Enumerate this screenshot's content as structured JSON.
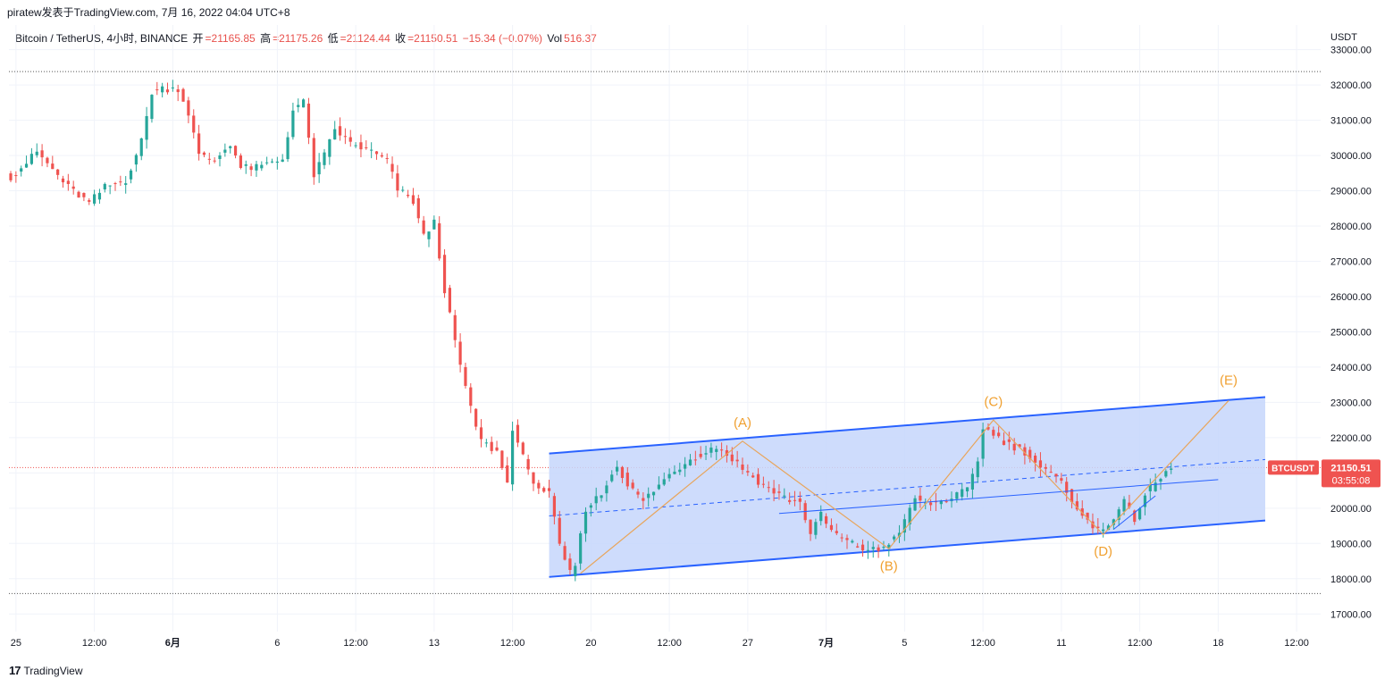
{
  "header": {
    "publish_line": "piratew发表于TradingView.com, 7月 16, 2022 04:04 UTC+8"
  },
  "legend": {
    "symbol": "Bitcoin / TetherUS, 4小时, BINANCE",
    "open_label": "开",
    "open": "=21165.85",
    "high_label": "高",
    "high": "=21175.26",
    "low_label": "低",
    "low": "=21124.44",
    "close_label": "收",
    "close": "=21150.51",
    "change": "−15.34 (−0.07%)",
    "vol_label": "Vol",
    "vol": "516.37"
  },
  "footer": {
    "brand": "TradingView",
    "logo_glyph": "17"
  },
  "colors": {
    "up": "#26a69a",
    "down": "#ef5350",
    "channel_line": "#2962ff",
    "channel_fill": "#c6d6fb",
    "wave": "#e8a55c",
    "wave_label": "#f0a030",
    "price_tag": "#ef5350"
  },
  "chart_data": {
    "type": "candlestick",
    "currency_label": "USDT",
    "ylim": [
      16500,
      33700
    ],
    "y_ticks": [
      "33000.00",
      "32000.00",
      "31000.00",
      "30000.00",
      "29000.00",
      "28000.00",
      "27000.00",
      "26000.00",
      "25000.00",
      "24000.00",
      "23000.00",
      "22000.00",
      "21000.00",
      "20000.00",
      "19000.00",
      "18000.00",
      "17000.00"
    ],
    "y_tick_values": [
      33000,
      32000,
      31000,
      30000,
      29000,
      28000,
      27000,
      26000,
      25000,
      24000,
      23000,
      22000,
      21000,
      20000,
      19000,
      18000,
      17000
    ],
    "x_ticks": [
      "25",
      "12:00",
      "6月",
      "6",
      "12:00",
      "13",
      "12:00",
      "20",
      "12:00",
      "27",
      "7月",
      "5",
      "12:00",
      "11",
      "12:00",
      "18",
      "12:00"
    ],
    "x_tick_bold": [
      false,
      false,
      true,
      false,
      false,
      false,
      false,
      false,
      false,
      false,
      true,
      false,
      false,
      false,
      false,
      false,
      false
    ],
    "bar_range": [
      0,
      240
    ],
    "x_tick_bars": [
      1,
      16,
      31,
      51,
      66,
      81,
      96,
      111,
      126,
      141,
      156,
      171,
      186,
      201,
      216,
      231,
      246
    ],
    "price_line": 21150.51,
    "price_tag": {
      "symbol": "BTCUSDT",
      "price": "21150.51",
      "countdown": "03:55:08"
    },
    "horizontal_levels": [
      32380,
      17580
    ],
    "anchors": [
      [
        0,
        29400
      ],
      [
        3,
        29800
      ],
      [
        5,
        30100
      ],
      [
        8,
        29600
      ],
      [
        11,
        29100
      ],
      [
        15,
        28650
      ],
      [
        18,
        29100
      ],
      [
        22,
        29300
      ],
      [
        25,
        30400
      ],
      [
        27,
        31800
      ],
      [
        29,
        31900
      ],
      [
        32,
        31900
      ],
      [
        34,
        31200
      ],
      [
        36,
        30000
      ],
      [
        39,
        29850
      ],
      [
        42,
        30350
      ],
      [
        44,
        29650
      ],
      [
        47,
        29650
      ],
      [
        52,
        29900
      ],
      [
        54,
        31300
      ],
      [
        56,
        31500
      ],
      [
        58,
        29450
      ],
      [
        60,
        30000
      ],
      [
        62,
        30750
      ],
      [
        65,
        30350
      ],
      [
        69,
        30100
      ],
      [
        72,
        29850
      ],
      [
        74,
        29050
      ],
      [
        77,
        28700
      ],
      [
        79,
        27700
      ],
      [
        81,
        28100
      ],
      [
        83,
        26200
      ],
      [
        85,
        24700
      ],
      [
        88,
        22800
      ],
      [
        90,
        21900
      ],
      [
        93,
        21600
      ],
      [
        95,
        20700
      ],
      [
        96,
        22300
      ],
      [
        99,
        21000
      ],
      [
        101,
        20600
      ],
      [
        103,
        20400
      ],
      [
        105,
        18900
      ],
      [
        107,
        18150
      ],
      [
        108,
        18400
      ],
      [
        110,
        20000
      ],
      [
        113,
        20400
      ],
      [
        116,
        21250
      ],
      [
        118,
        20650
      ],
      [
        121,
        20200
      ],
      [
        123,
        20500
      ],
      [
        126,
        20950
      ],
      [
        130,
        21400
      ],
      [
        135,
        21750
      ],
      [
        138,
        21400
      ],
      [
        141,
        21000
      ],
      [
        144,
        20650
      ],
      [
        148,
        20300
      ],
      [
        151,
        20150
      ],
      [
        153,
        19300
      ],
      [
        155,
        19800
      ],
      [
        157,
        19350
      ],
      [
        160,
        19050
      ],
      [
        163,
        18850
      ],
      [
        166,
        18800
      ],
      [
        169,
        19150
      ],
      [
        171,
        19600
      ],
      [
        173,
        20300
      ],
      [
        175,
        20100
      ],
      [
        177,
        20150
      ],
      [
        180,
        20300
      ],
      [
        183,
        20500
      ],
      [
        185,
        21350
      ],
      [
        186,
        22300
      ],
      [
        188,
        22100
      ],
      [
        191,
        21800
      ],
      [
        194,
        21600
      ],
      [
        197,
        21150
      ],
      [
        200,
        20850
      ],
      [
        202,
        20500
      ],
      [
        205,
        19800
      ],
      [
        207,
        19400
      ],
      [
        209,
        19450
      ],
      [
        211,
        19750
      ],
      [
        213,
        20150
      ],
      [
        215,
        19700
      ],
      [
        217,
        20400
      ],
      [
        219,
        20700
      ],
      [
        222,
        21150
      ]
    ],
    "channel": {
      "upper": [
        [
          103,
          21550
        ],
        [
          240,
          23150
        ]
      ],
      "lower": [
        [
          103,
          18050
        ],
        [
          240,
          19650
        ]
      ]
    },
    "mid_dashed": [
      [
        103,
        19780
      ],
      [
        240,
        21380
      ]
    ],
    "inner_line": [
      [
        147,
        19850
      ],
      [
        231,
        20810
      ]
    ],
    "small_line": [
      [
        211,
        19400
      ],
      [
        219,
        20350
      ]
    ],
    "wave_path": [
      [
        109,
        18150
      ],
      [
        140,
        21900
      ],
      [
        168,
        18850
      ],
      [
        188,
        22500
      ],
      [
        209,
        19250
      ],
      [
        233,
        23050
      ]
    ],
    "wave_labels": [
      {
        "text": "(A)",
        "bar": 140,
        "price": 22300
      },
      {
        "text": "(B)",
        "bar": 168,
        "price": 18230
      },
      {
        "text": "(C)",
        "bar": 188,
        "price": 22900
      },
      {
        "text": "(D)",
        "bar": 209,
        "price": 18650
      },
      {
        "text": "(E)",
        "bar": 233,
        "price": 23500
      }
    ]
  }
}
